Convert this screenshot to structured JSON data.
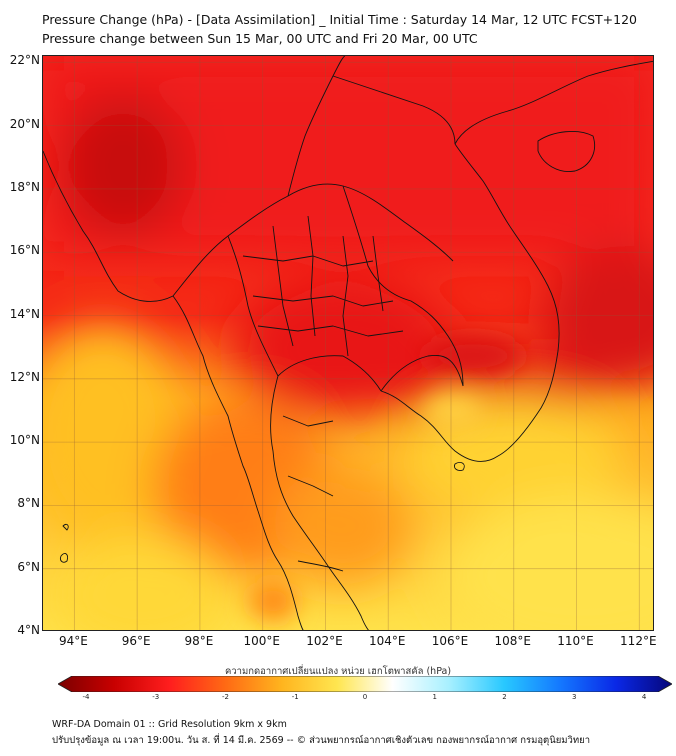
{
  "title": {
    "line1": "Pressure Change (hPa) - [Data Assimilation] _ Initial Time : Saturday 14 Mar, 12 UTC FCST+120",
    "line2": "Pressure change between Sun 15 Mar, 00 UTC and Fri 20 Mar, 00 UTC"
  },
  "map": {
    "lat_labels": [
      "22°N",
      "20°N",
      "18°N",
      "16°N",
      "14°N",
      "12°N",
      "10°N",
      "8°N",
      "6°N",
      "4°N"
    ],
    "lon_labels": [
      "94°E",
      "96°E",
      "98°E",
      "100°E",
      "102°E",
      "104°E",
      "106°E",
      "108°E",
      "110°E",
      "112°E"
    ],
    "extent": {
      "lon_min": 93.0,
      "lon_max": 112.5,
      "lat_min": 4.0,
      "lat_max": 22.2
    },
    "colors": {
      "strong_red": "#d41212",
      "red": "#f01c1c",
      "orange": "#ff7a14",
      "yellow": "#ffc81e",
      "light_yellow": "#ffe95a",
      "border": "#141414"
    }
  },
  "colorbar": {
    "title": "ความกดอากาศเปลี่ยนแปลง หน่วย เฮกโตพาสคัล (hPa)",
    "ticks": [
      "-4",
      "-3",
      "-2",
      "-1",
      "0",
      "1",
      "2",
      "3",
      "4"
    ],
    "range": [
      -4.2,
      4.2
    ],
    "colors": [
      "#7a0000",
      "#c80000",
      "#ff1e1e",
      "#ff6a14",
      "#ffb41e",
      "#ffe650",
      "#ffffff",
      "#a8f0ff",
      "#28c8ff",
      "#1478ff",
      "#0a28e6",
      "#06067a"
    ]
  },
  "footer": {
    "line1": "WRF-DA Domain 01 :: Grid Resolution 9km x 9km",
    "line2": "ปรับปรุงข้อมูล ณ เวลา 19:00น. วัน ส. ที่ 14 มี.ค. 2569 -- © ส่วนพยากรณ์อากาศเชิงตัวเลข กองพยากรณ์อากาศ กรมอุตุนิยมวิทยา"
  }
}
